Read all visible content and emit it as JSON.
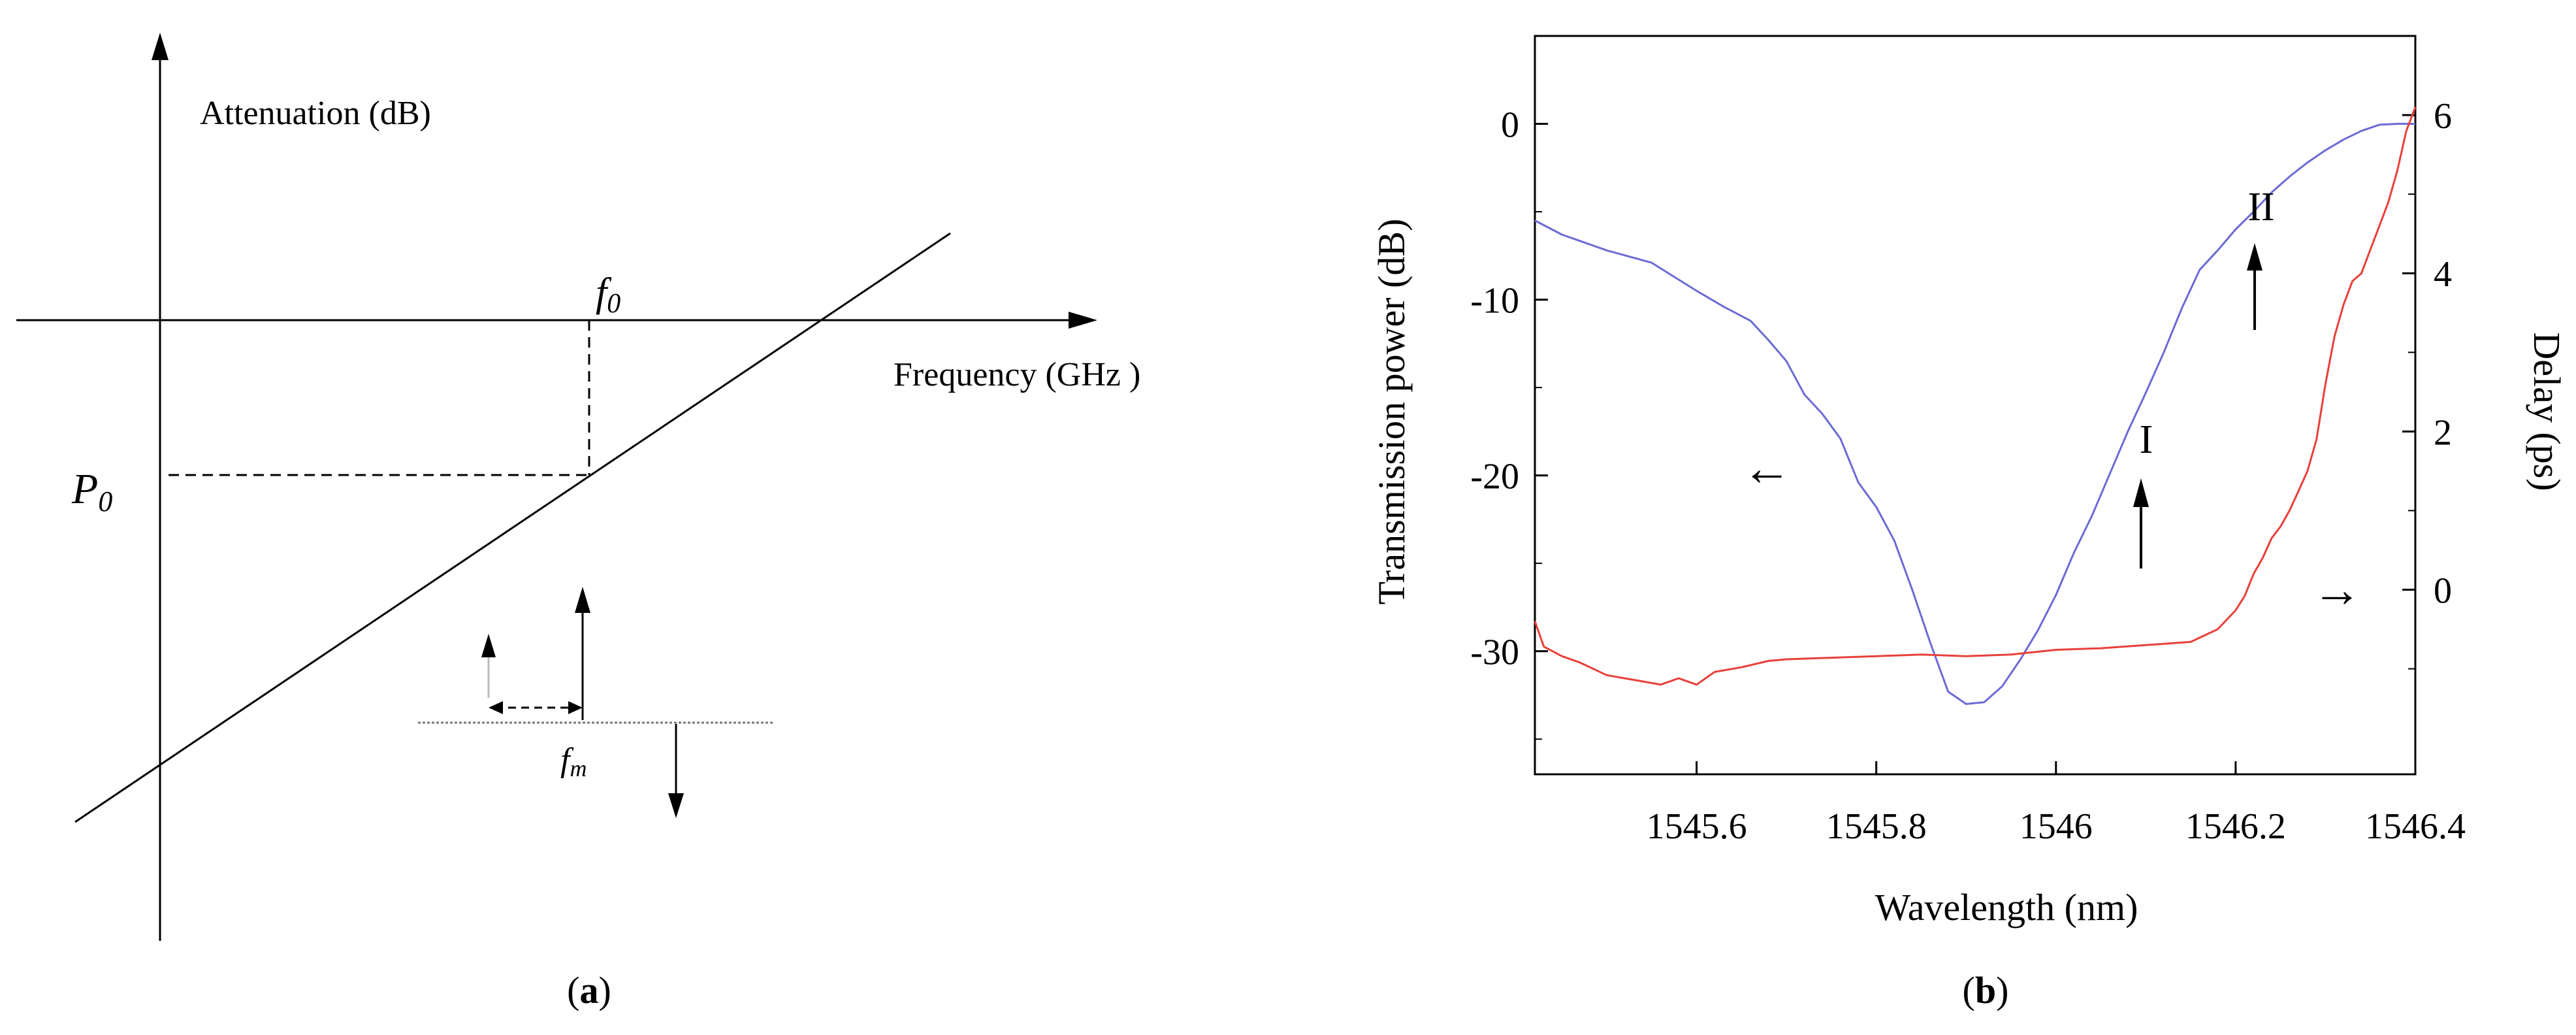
{
  "panel_a": {
    "caption_open": "(",
    "caption_letter": "a",
    "caption_close": ")",
    "y_axis_label": "Attenuation (dB)",
    "x_axis_label": "Frequency (GHz )",
    "f0_label": "f",
    "f0_sub": "0",
    "p0_label": "P",
    "p0_sub": "0",
    "fm_label": "f",
    "fm_sub": "m"
  },
  "panel_b": {
    "caption_open": "(",
    "caption_letter": "b",
    "caption_close": ")",
    "annotation_I": "I",
    "annotation_II": "II"
  },
  "chart_data": [
    {
      "type": "line",
      "xlabel": "Wavelength (nm)",
      "ylabel": "Transmission power (dB)",
      "y2label": "Delay (ps)",
      "xlim": [
        1545.42,
        1546.4
      ],
      "ylim": [
        -37,
        5
      ],
      "y2lim": [
        -2.33333,
        7
      ],
      "xticks": [
        1545.6,
        1545.8,
        1546,
        1546.2,
        1546.4
      ],
      "xtick_labels": [
        "1545.6",
        "1545.8",
        "1546",
        "1546.2",
        "1546.4"
      ],
      "yticks": [
        0,
        -10,
        -20,
        -30
      ],
      "ytick_labels": [
        "0",
        "-10",
        "-20",
        "-30"
      ],
      "y2ticks": [
        6,
        4,
        2,
        0
      ],
      "y2tick_labels": [
        "6",
        "4",
        "2",
        "0"
      ],
      "grid": false,
      "legend": "none",
      "series": [
        {
          "axis": "left",
          "color": "#6b6bd6",
          "x": [
            1545.42,
            1545.45,
            1545.5,
            1545.55,
            1545.6,
            1545.63,
            1545.66,
            1545.68,
            1545.7,
            1545.72,
            1545.74,
            1545.76,
            1545.78,
            1545.8,
            1545.82,
            1545.84,
            1545.86,
            1545.88,
            1545.9,
            1545.92,
            1545.94,
            1545.96,
            1545.98,
            1546.0,
            1546.02,
            1546.04,
            1546.06,
            1546.08,
            1546.1,
            1546.12,
            1546.14,
            1546.16,
            1546.18,
            1546.2,
            1546.22,
            1546.24,
            1546.26,
            1546.28,
            1546.3,
            1546.32,
            1546.34,
            1546.36,
            1546.38,
            1546.4
          ],
          "y": [
            -5.5,
            -6.3,
            -7.2,
            -7.9,
            -9.5,
            -10.4,
            -11.2,
            -12.3,
            -13.5,
            -15.4,
            -16.5,
            -17.9,
            -20.4,
            -21.8,
            -23.7,
            -26.5,
            -29.5,
            -32.3,
            -33.0,
            -32.9,
            -32.0,
            -30.5,
            -28.8,
            -26.8,
            -24.4,
            -22.3,
            -19.9,
            -17.5,
            -15.3,
            -13.0,
            -10.5,
            -8.3,
            -7.2,
            -6.0,
            -5.0,
            -3.9,
            -3.0,
            -2.2,
            -1.5,
            -0.9,
            -0.4,
            -0.05,
            0.0,
            0.0
          ]
        },
        {
          "axis": "right",
          "color": "#e8403a",
          "x": [
            1545.42,
            1545.43,
            1545.45,
            1545.47,
            1545.5,
            1545.52,
            1545.54,
            1545.56,
            1545.58,
            1545.6,
            1545.62,
            1545.65,
            1545.68,
            1545.7,
            1545.75,
            1545.8,
            1545.85,
            1545.9,
            1545.95,
            1546.0,
            1546.05,
            1546.1,
            1546.15,
            1546.18,
            1546.2,
            1546.21,
            1546.22,
            1546.23,
            1546.24,
            1546.25,
            1546.26,
            1546.27,
            1546.28,
            1546.29,
            1546.3,
            1546.31,
            1546.32,
            1546.33,
            1546.34,
            1546.35,
            1546.36,
            1546.37,
            1546.38,
            1546.39,
            1546.4
          ],
          "y": [
            -0.4,
            -0.72,
            -0.84,
            -0.92,
            -1.08,
            -1.12,
            -1.16,
            -1.2,
            -1.12,
            -1.2,
            -1.04,
            -0.98,
            -0.9,
            -0.88,
            -0.86,
            -0.84,
            -0.82,
            -0.84,
            -0.82,
            -0.76,
            -0.74,
            -0.7,
            -0.66,
            -0.5,
            -0.26,
            -0.08,
            0.2,
            0.4,
            0.65,
            0.8,
            1.0,
            1.25,
            1.5,
            1.9,
            2.6,
            3.2,
            3.6,
            3.9,
            4.0,
            4.3,
            4.6,
            4.9,
            5.3,
            5.8,
            6.1
          ]
        }
      ],
      "annotations": [
        {
          "text": "I",
          "x": 1546.08,
          "y": -18.5,
          "arrow": "up"
        },
        {
          "text": "II",
          "x": 1546.21,
          "y": -7.0,
          "arrow": "up"
        },
        {
          "text": "←",
          "series_axis": "left"
        },
        {
          "text": "→",
          "series_axis": "right"
        }
      ]
    }
  ]
}
